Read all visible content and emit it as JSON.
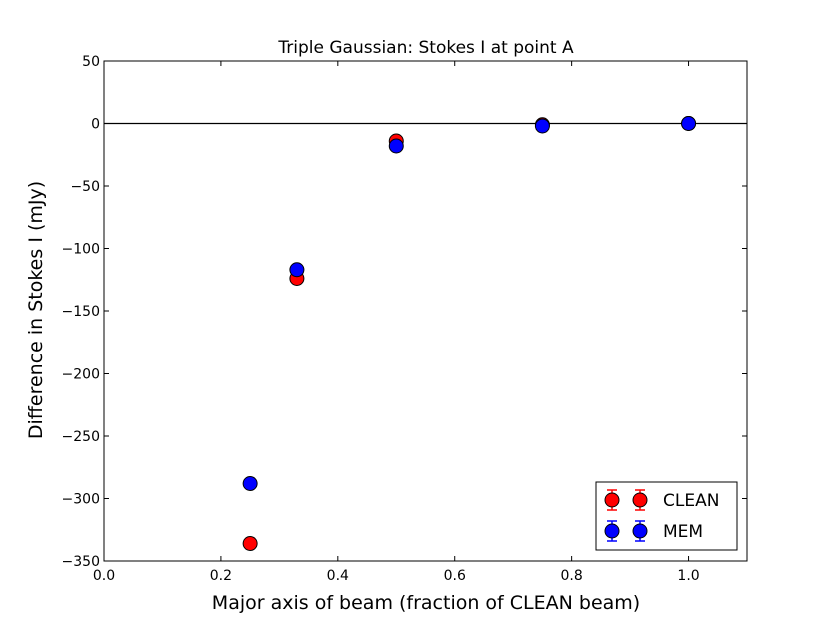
{
  "chart_data": {
    "type": "scatter",
    "title": "Triple Gaussian: Stokes I at point A",
    "xlabel": "Major axis of beam (fraction of CLEAN beam)",
    "ylabel": "Difference in Stokes I (mJy)",
    "xlim": [
      0.0,
      1.1
    ],
    "ylim": [
      -350,
      50
    ],
    "xticks": [
      "0.0",
      "0.2",
      "0.4",
      "0.6",
      "0.8",
      "1.0"
    ],
    "xtick_values": [
      0.0,
      0.2,
      0.4,
      0.6,
      0.8,
      1.0
    ],
    "yticks": [
      "50",
      "0",
      "−50",
      "−100",
      "−150",
      "−200",
      "−250",
      "−300",
      "−350"
    ],
    "ytick_values": [
      50,
      0,
      -50,
      -100,
      -150,
      -200,
      -250,
      -300,
      -350
    ],
    "reference_line_y": 0,
    "grid": false,
    "legend_position": "lower right",
    "series": [
      {
        "name": "CLEAN",
        "color": "#ff0000",
        "x": [
          0.25,
          0.33,
          0.5,
          0.75,
          1.0
        ],
        "y": [
          -336,
          -124,
          -14,
          -1,
          0
        ],
        "yerr": [
          4,
          3,
          2,
          1,
          1
        ]
      },
      {
        "name": "MEM",
        "color": "#0000ff",
        "x": [
          0.25,
          0.33,
          0.5,
          0.75,
          1.0
        ],
        "y": [
          -288,
          -117,
          -18,
          -2,
          0
        ],
        "yerr": [
          3,
          3,
          2,
          1,
          1
        ]
      }
    ]
  }
}
